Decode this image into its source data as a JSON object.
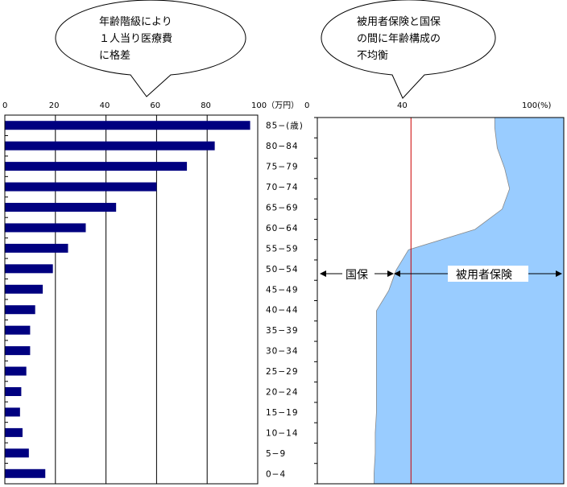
{
  "callouts": {
    "left": [
      "年齢階級により",
      "１人当り医療費",
      "に格差"
    ],
    "right": [
      "被用者保険と国保",
      "の間に年齢構成の",
      "不均衡"
    ]
  },
  "colors": {
    "bar": "#000080",
    "area": "#99ccff",
    "divider": "#cc0000",
    "grid": "#000000"
  },
  "chart_data": [
    {
      "type": "bar",
      "orientation": "horizontal",
      "categories": [
        "85−(歳)",
        "80−84",
        "75−79",
        "70−74",
        "65−69",
        "60−64",
        "55−59",
        "50−54",
        "45−49",
        "40−44",
        "35−39",
        "30−34",
        "25−29",
        "20−24",
        "15−19",
        "10−14",
        "5−9",
        "0−4"
      ],
      "values": [
        97,
        83,
        72,
        60,
        44,
        32,
        25,
        19,
        15,
        12,
        10,
        10,
        8.5,
        6.5,
        6,
        7,
        9.5,
        16
      ],
      "xticks": [
        "0",
        "20",
        "40",
        "60",
        "80",
        "100（万円）"
      ],
      "xlim": [
        0,
        100
      ],
      "grid": true
    },
    {
      "type": "area",
      "orientation": "horizontal",
      "categories": [
        "85−(歳)",
        "80−84",
        "75−79",
        "70−74",
        "65−69",
        "60−64",
        "55−59",
        "50−54",
        "45−49",
        "40−44",
        "35−39",
        "30−34",
        "25−29",
        "20−24",
        "15−19",
        "10−14",
        "5−9",
        "0−4"
      ],
      "series": [
        {
          "name": "国保",
          "values": [
            72,
            73,
            76,
            78,
            75,
            64,
            37,
            32,
            29,
            24,
            24,
            24,
            24,
            24,
            24,
            23.5,
            23.5,
            23
          ]
        },
        {
          "name": "被用者保険",
          "values": [
            28,
            27,
            24,
            22,
            25,
            36,
            63,
            68,
            71,
            76,
            76,
            76,
            76,
            76,
            76,
            76.5,
            76.5,
            77
          ]
        }
      ],
      "stacked_percent": true,
      "xticks": [
        "0",
        "40",
        "100(%)"
      ],
      "xlim": [
        0,
        100
      ],
      "reference_line": 38
    }
  ]
}
